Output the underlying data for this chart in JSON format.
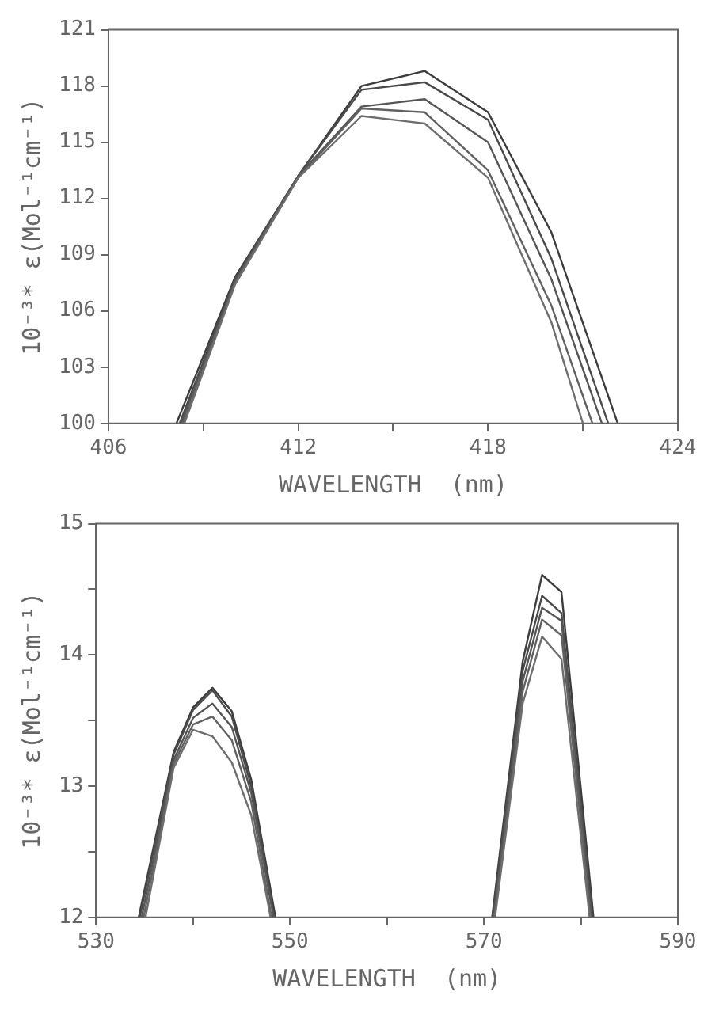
{
  "chart_data": [
    {
      "type": "line",
      "xlabel": "WAVELENGTH  (nm)",
      "ylabel": "10⁻³* ε(Mol⁻¹cm⁻¹)",
      "xlim": [
        406,
        424
      ],
      "ylim": [
        100,
        121
      ],
      "xticks": [
        406,
        {
          "value": 409,
          "label": null
        },
        412,
        {
          "value": 415,
          "label": null
        },
        418,
        {
          "value": 421,
          "label": null
        },
        424
      ],
      "yticks": [
        100,
        103,
        106,
        109,
        112,
        115,
        118,
        121
      ],
      "grid": false,
      "legend": false,
      "marker": "none",
      "line_style": "solid",
      "series": [
        {
          "color": "#3c3c3c",
          "x": [
            408.15,
            410,
            412,
            414,
            416,
            418,
            420,
            422.1
          ],
          "values": [
            100,
            107.8,
            113.2,
            118.0,
            118.8,
            116.6,
            110.2,
            100
          ]
        },
        {
          "color": "#4a4a4a",
          "x": [
            408.25,
            410,
            412,
            414,
            416,
            418,
            420,
            421.8
          ],
          "values": [
            100,
            107.7,
            113.2,
            117.8,
            118.2,
            116.2,
            108.8,
            100
          ]
        },
        {
          "color": "#555555",
          "x": [
            408.3,
            410,
            412,
            414,
            416,
            418,
            420,
            421.6
          ],
          "values": [
            100,
            107.6,
            113.2,
            116.9,
            117.3,
            115.0,
            107.7,
            100
          ]
        },
        {
          "color": "#616161",
          "x": [
            408.35,
            410,
            412,
            414,
            416,
            418,
            420,
            421.3
          ],
          "values": [
            100,
            107.5,
            113.1,
            116.8,
            116.6,
            113.5,
            106.3,
            100
          ]
        },
        {
          "color": "#6e6e6e",
          "x": [
            408.4,
            410,
            412,
            414,
            416,
            418,
            420,
            421.0
          ],
          "values": [
            100,
            107.4,
            113.1,
            116.4,
            116.0,
            113.1,
            105.4,
            100
          ]
        }
      ]
    },
    {
      "type": "line",
      "xlabel": "WAVELENGTH  (nm)",
      "ylabel": "10⁻³* ε(Mol⁻¹cm⁻¹)",
      "xlim": [
        530,
        590
      ],
      "ylim": [
        12,
        15
      ],
      "xticks": [
        530,
        {
          "value": 540,
          "label": null
        },
        550,
        {
          "value": 560,
          "label": null
        },
        570,
        {
          "value": 580,
          "label": null
        },
        590
      ],
      "yticks": [
        12,
        {
          "value": 12.5,
          "label": null
        },
        13,
        {
          "value": 13.5,
          "label": null
        },
        14,
        {
          "value": 14.5,
          "label": null
        },
        15
      ],
      "grid": false,
      "legend": false,
      "marker": "none",
      "line_style": "solid",
      "series": [
        {
          "color": "#3c3c3c",
          "x": [
            534.4,
            538,
            540,
            542,
            544,
            546,
            548.5,
            560,
            570.85,
            574,
            576,
            578,
            581.3
          ],
          "values": [
            12,
            13.26,
            13.6,
            13.75,
            13.57,
            13.05,
            12,
            null,
            12,
            13.95,
            14.61,
            14.48,
            12
          ]
        },
        {
          "color": "#4a4a4a",
          "x": [
            534.5,
            538,
            540,
            542,
            544,
            546,
            548.4,
            560,
            570.9,
            574,
            576,
            578,
            581.2
          ],
          "values": [
            12,
            13.24,
            13.58,
            13.73,
            13.53,
            13.0,
            12,
            null,
            12,
            13.88,
            14.45,
            14.32,
            12
          ]
        },
        {
          "color": "#555555",
          "x": [
            534.7,
            538,
            540,
            542,
            544,
            546,
            548.3,
            560,
            571.0,
            574,
            576,
            578,
            581.1
          ],
          "values": [
            12,
            13.2,
            13.52,
            13.63,
            13.45,
            12.95,
            12,
            null,
            12,
            13.8,
            14.36,
            14.26,
            12
          ]
        },
        {
          "color": "#616161",
          "x": [
            534.9,
            538,
            540,
            542,
            544,
            546,
            548.1,
            560,
            571.05,
            574,
            576,
            578,
            581.0
          ],
          "values": [
            12,
            13.17,
            13.47,
            13.53,
            13.35,
            12.88,
            12,
            null,
            12,
            13.72,
            14.27,
            14.15,
            12
          ]
        },
        {
          "color": "#6e6e6e",
          "x": [
            535.1,
            538,
            540,
            542,
            544,
            546,
            548.0,
            560,
            571.15,
            574,
            576,
            578,
            580.9
          ],
          "values": [
            12,
            13.14,
            13.43,
            13.38,
            13.18,
            12.78,
            12,
            null,
            12,
            13.63,
            14.14,
            13.97,
            12
          ]
        }
      ]
    }
  ]
}
